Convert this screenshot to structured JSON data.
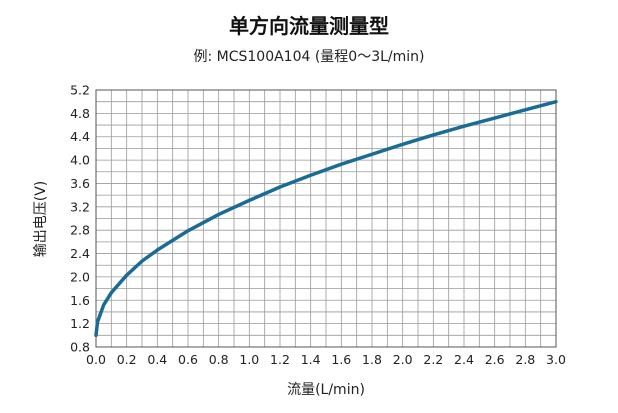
{
  "title": "单方向流量测量型",
  "subtitle": "例: MCS100A104 (量程0～3L/min)",
  "chart_data": {
    "type": "line",
    "title": "单方向流量测量型",
    "subtitle": "例: MCS100A104 (量程0～3L/min)",
    "xlabel": "流量(L/min)",
    "ylabel": "输出电压(V)",
    "xlim": [
      0,
      3.0
    ],
    "ylim": [
      0.8,
      5.2
    ],
    "x_ticks": [
      "0.0",
      "0.2",
      "0.4",
      "0.6",
      "0.8",
      "1.0",
      "1.2",
      "1.4",
      "1.6",
      "1.8",
      "2.0",
      "2.2",
      "2.4",
      "2.6",
      "2.8",
      "3.0"
    ],
    "y_ticks": [
      "0.8",
      "1.2",
      "1.6",
      "2.0",
      "2.4",
      "2.8",
      "3.2",
      "3.6",
      "4.0",
      "4.4",
      "4.8",
      "5.2"
    ],
    "grid": true,
    "minor_x_step": 0.1,
    "minor_y_step": 0.2,
    "line_color": "#1a6b95",
    "series": [
      {
        "x": [
          0.0,
          0.01,
          0.05,
          0.1,
          0.2,
          0.3,
          0.4,
          0.6,
          0.8,
          1.0,
          1.2,
          1.4,
          1.6,
          1.8,
          2.0,
          2.2,
          2.4,
          2.6,
          2.8,
          3.0
        ],
        "values": [
          1.0,
          1.23,
          1.52,
          1.73,
          2.03,
          2.27,
          2.46,
          2.79,
          3.07,
          3.31,
          3.54,
          3.74,
          3.93,
          4.1,
          4.27,
          4.43,
          4.58,
          4.72,
          4.86,
          5.0
        ]
      }
    ]
  }
}
